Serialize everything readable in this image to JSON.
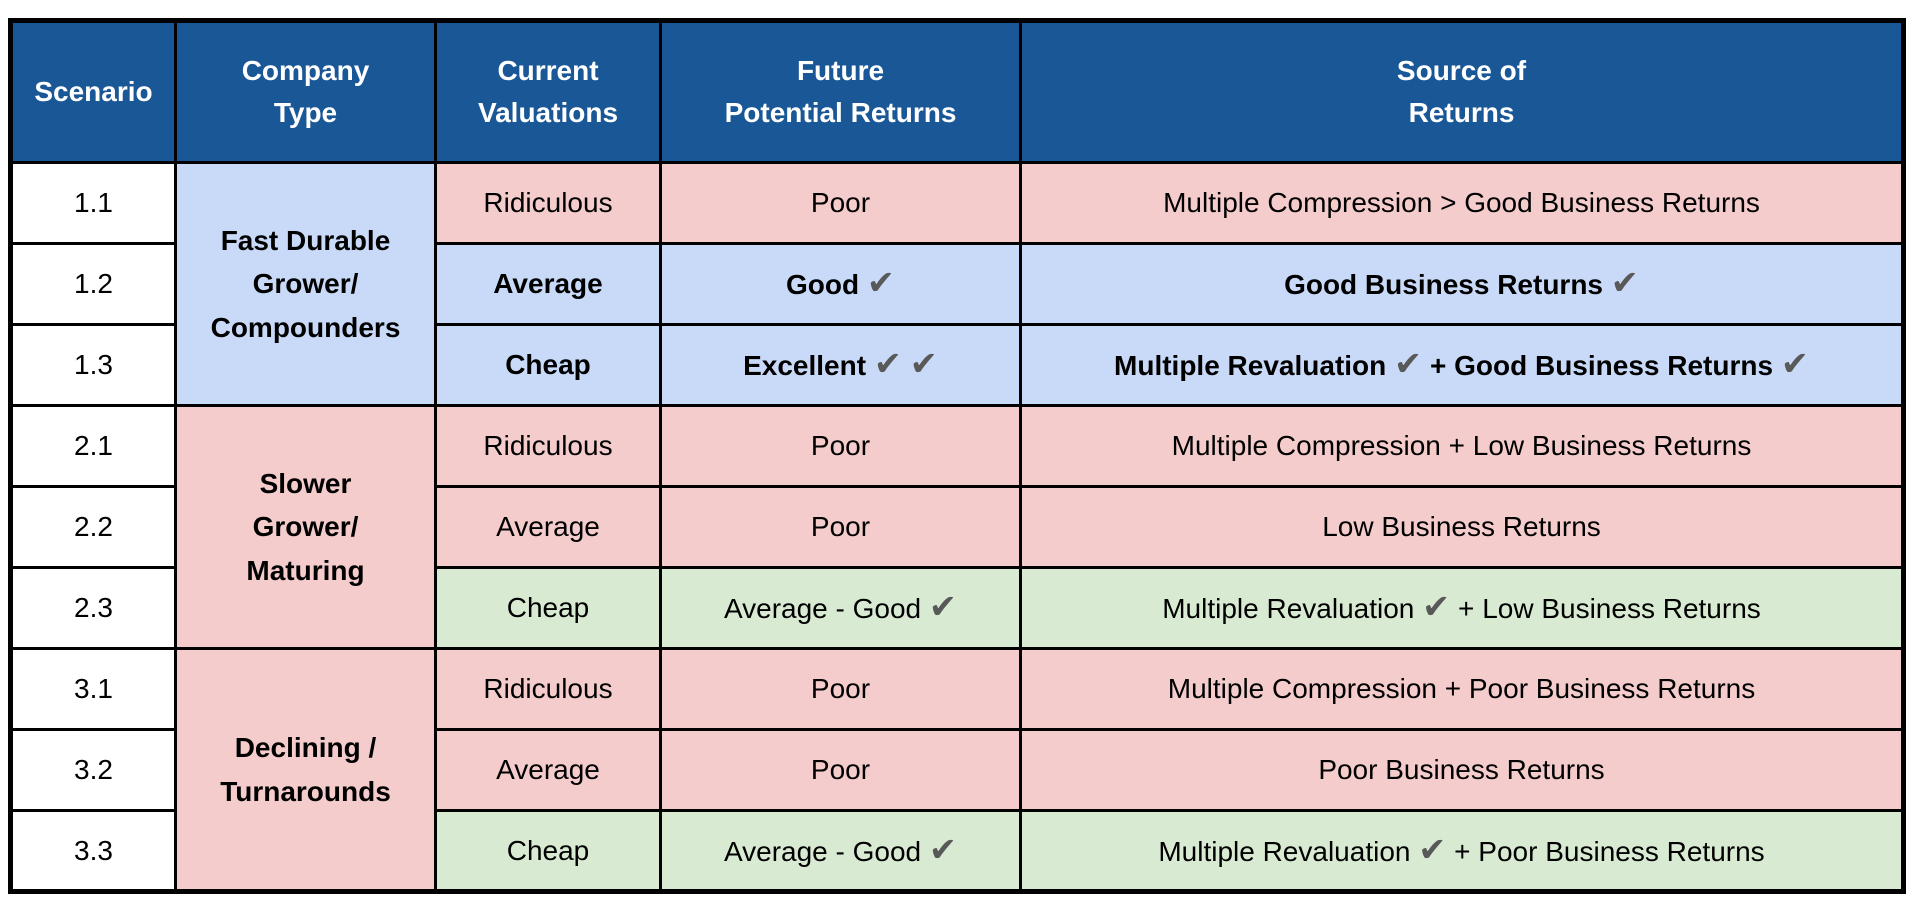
{
  "colors": {
    "header_bg": "#1A5796",
    "header_text": "#FFFFFF",
    "cell_blue": "#C9DAF8",
    "cell_pink": "#F4CCCC",
    "cell_green": "#D9EAD3",
    "cell_white": "#FFFFFF",
    "check": "#595959",
    "border": "#000000",
    "page_bg": "#FFFFFF"
  },
  "header": {
    "scenario": "Scenario",
    "company_type": "Company\nType",
    "current_valuations": "Current\nValuations",
    "future_potential_returns": "Future\nPotential Returns",
    "source_of_returns": "Source of\nReturns"
  },
  "groups": [
    {
      "company_type": "Fast Durable\nGrower/\nCompounders",
      "rows": [
        {
          "scenario": "1.1",
          "current_valuation": "Ridiculous",
          "future_potential_return": "Poor",
          "source_of_returns": "Multiple Compression > Good Business Returns"
        },
        {
          "scenario": "1.2",
          "current_valuation": "Average",
          "future_potential_return": "Good ✔",
          "source_of_returns": "Good Business Returns ✔"
        },
        {
          "scenario": "1.3",
          "current_valuation": "Cheap",
          "future_potential_return": "Excellent ✔ ✔",
          "source_of_returns": "Multiple Revaluation ✔ + Good Business Returns ✔"
        }
      ]
    },
    {
      "company_type": "Slower\nGrower/\nMaturing",
      "rows": [
        {
          "scenario": "2.1",
          "current_valuation": "Ridiculous",
          "future_potential_return": "Poor",
          "source_of_returns": "Multiple Compression + Low Business Returns"
        },
        {
          "scenario": "2.2",
          "current_valuation": "Average",
          "future_potential_return": "Poor",
          "source_of_returns": "Low Business Returns"
        },
        {
          "scenario": "2.3",
          "current_valuation": "Cheap",
          "future_potential_return": "Average - Good ✔",
          "source_of_returns": "Multiple Revaluation ✔ + Low Business Returns"
        }
      ]
    },
    {
      "company_type": "Declining /\nTurnarounds",
      "rows": [
        {
          "scenario": "3.1",
          "current_valuation": "Ridiculous",
          "future_potential_return": "Poor",
          "source_of_returns": "Multiple Compression + Poor Business Returns"
        },
        {
          "scenario": "3.2",
          "current_valuation": "Average",
          "future_potential_return": "Poor",
          "source_of_returns": "Poor Business Returns"
        },
        {
          "scenario": "3.3",
          "current_valuation": "Cheap",
          "future_potential_return": "Average - Good ✔",
          "source_of_returns": "Multiple Revaluation ✔ + Poor Business Returns"
        }
      ]
    }
  ]
}
